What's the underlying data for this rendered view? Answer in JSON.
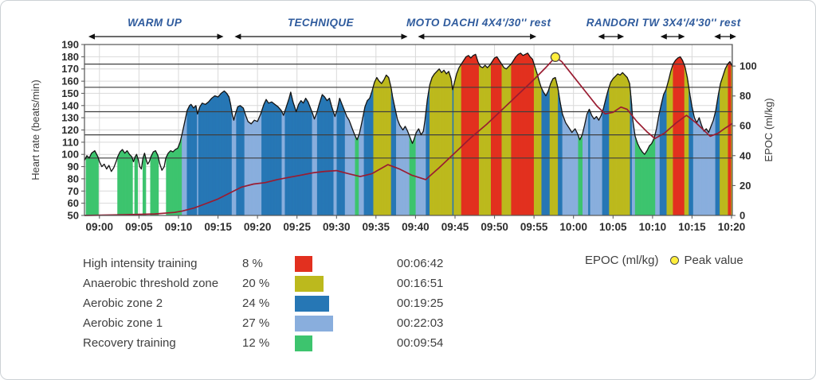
{
  "chart_data": {
    "type": "area",
    "title": "",
    "left_axis": {
      "label": "Heart rate (beats/min)",
      "min": 50,
      "max": 190,
      "tick_step": 10
    },
    "right_axis": {
      "label": "EPOC (ml/kg)",
      "ticks": [
        0,
        20,
        40,
        60,
        80,
        100
      ],
      "scale_max": 114.4
    },
    "time_axis": {
      "domain_min": -1.9,
      "domain_max": 80.1,
      "ticks": [
        {
          "min": 0,
          "label": "09:00"
        },
        {
          "min": 5,
          "label": "09:05"
        },
        {
          "min": 10,
          "label": "09:10"
        },
        {
          "min": 15,
          "label": "09:15"
        },
        {
          "min": 20,
          "label": "09:20"
        },
        {
          "min": 25,
          "label": "09:25"
        },
        {
          "min": 30,
          "label": "09:30"
        },
        {
          "min": 35,
          "label": "09:35"
        },
        {
          "min": 40,
          "label": "09:40"
        },
        {
          "min": 45,
          "label": "09:45"
        },
        {
          "min": 50,
          "label": "09:50"
        },
        {
          "min": 55,
          "label": "09:55"
        },
        {
          "min": 60,
          "label": "10:00"
        },
        {
          "min": 65,
          "label": "10:05"
        },
        {
          "min": 70,
          "label": "10:10"
        },
        {
          "min": 75,
          "label": "10:15"
        },
        {
          "min": 80,
          "label": "10:20"
        }
      ]
    },
    "zones": [
      {
        "name": "High intensity training",
        "hr_min": 174,
        "hr_max": 999,
        "color": "#e2301f"
      },
      {
        "name": "Anaerobic threshold zone",
        "hr_min": 155,
        "hr_max": 174,
        "color": "#bcb91d"
      },
      {
        "name": "Aerobic zone 2",
        "hr_min": 135,
        "hr_max": 155,
        "color": "#2677b5"
      },
      {
        "name": "Aerobic zone 1",
        "hr_min": 116,
        "hr_max": 135,
        "color": "#89aedd"
      },
      {
        "name": "Recovery training",
        "hr_min": 97,
        "hr_max": 116,
        "color": "#3dc46e"
      }
    ],
    "hr_series": [
      [
        -1.9,
        95
      ],
      [
        -1.6,
        99
      ],
      [
        -1.3,
        97
      ],
      [
        -1.0,
        101
      ],
      [
        -0.6,
        103
      ],
      [
        -0.2,
        98
      ],
      [
        0.0,
        94
      ],
      [
        0.3,
        90
      ],
      [
        0.6,
        92
      ],
      [
        0.9,
        88
      ],
      [
        1.2,
        91
      ],
      [
        1.5,
        86
      ],
      [
        1.8,
        89
      ],
      [
        2.1,
        94
      ],
      [
        2.3,
        98
      ],
      [
        2.6,
        102
      ],
      [
        2.9,
        104
      ],
      [
        3.2,
        101
      ],
      [
        3.5,
        103
      ],
      [
        3.8,
        100
      ],
      [
        4.1,
        98
      ],
      [
        4.3,
        94
      ],
      [
        4.5,
        98
      ],
      [
        4.7,
        100
      ],
      [
        4.9,
        96
      ],
      [
        5.1,
        90
      ],
      [
        5.3,
        88
      ],
      [
        5.5,
        97
      ],
      [
        5.7,
        101
      ],
      [
        5.9,
        96
      ],
      [
        6.1,
        92
      ],
      [
        6.3,
        94
      ],
      [
        6.5,
        98
      ],
      [
        6.8,
        102
      ],
      [
        7.1,
        103
      ],
      [
        7.4,
        99
      ],
      [
        7.6,
        93
      ],
      [
        7.9,
        87
      ],
      [
        8.2,
        90
      ],
      [
        8.4,
        97
      ],
      [
        8.7,
        101
      ],
      [
        9.0,
        103
      ],
      [
        9.3,
        102
      ],
      [
        9.6,
        104
      ],
      [
        9.9,
        105
      ],
      [
        10.2,
        110
      ],
      [
        10.5,
        118
      ],
      [
        10.8,
        127
      ],
      [
        11.1,
        136
      ],
      [
        11.4,
        140
      ],
      [
        11.6,
        141
      ],
      [
        11.9,
        138
      ],
      [
        12.2,
        140
      ],
      [
        12.4,
        133
      ],
      [
        12.7,
        139
      ],
      [
        13.0,
        142
      ],
      [
        13.4,
        141
      ],
      [
        13.8,
        143
      ],
      [
        14.2,
        146
      ],
      [
        14.6,
        148
      ],
      [
        15.0,
        147
      ],
      [
        15.4,
        150
      ],
      [
        15.8,
        152
      ],
      [
        16.1,
        150
      ],
      [
        16.4,
        147
      ],
      [
        16.6,
        141
      ],
      [
        16.8,
        133
      ],
      [
        17.0,
        128
      ],
      [
        17.2,
        133
      ],
      [
        17.5,
        139
      ],
      [
        17.8,
        140
      ],
      [
        18.2,
        138
      ],
      [
        18.5,
        132
      ],
      [
        18.8,
        127
      ],
      [
        19.2,
        125
      ],
      [
        19.6,
        128
      ],
      [
        20.0,
        127
      ],
      [
        20.4,
        133
      ],
      [
        20.8,
        141
      ],
      [
        21.1,
        145
      ],
      [
        21.4,
        142
      ],
      [
        21.8,
        143
      ],
      [
        22.2,
        141
      ],
      [
        22.6,
        139
      ],
      [
        23.0,
        136
      ],
      [
        23.3,
        132
      ],
      [
        23.6,
        138
      ],
      [
        24.0,
        146
      ],
      [
        24.2,
        151
      ],
      [
        24.5,
        143
      ],
      [
        24.9,
        135
      ],
      [
        25.2,
        141
      ],
      [
        25.5,
        144
      ],
      [
        25.8,
        142
      ],
      [
        26.1,
        146
      ],
      [
        26.4,
        143
      ],
      [
        26.7,
        138
      ],
      [
        27.0,
        133
      ],
      [
        27.2,
        129
      ],
      [
        27.5,
        134
      ],
      [
        27.8,
        141
      ],
      [
        28.2,
        149
      ],
      [
        28.5,
        147
      ],
      [
        28.8,
        144
      ],
      [
        29.1,
        146
      ],
      [
        29.4,
        139
      ],
      [
        29.8,
        131
      ],
      [
        30.1,
        137
      ],
      [
        30.4,
        146
      ],
      [
        30.7,
        141
      ],
      [
        31.0,
        136
      ],
      [
        31.3,
        131
      ],
      [
        31.6,
        128
      ],
      [
        32.0,
        121
      ],
      [
        32.3,
        116
      ],
      [
        32.6,
        112
      ],
      [
        32.9,
        117
      ],
      [
        33.2,
        126
      ],
      [
        33.6,
        139
      ],
      [
        33.9,
        144
      ],
      [
        34.2,
        146
      ],
      [
        34.5,
        152
      ],
      [
        34.8,
        159
      ],
      [
        35.1,
        163
      ],
      [
        35.4,
        160
      ],
      [
        35.7,
        158
      ],
      [
        36.0,
        161
      ],
      [
        36.3,
        165
      ],
      [
        36.6,
        163
      ],
      [
        36.9,
        155
      ],
      [
        37.1,
        147
      ],
      [
        37.4,
        138
      ],
      [
        37.7,
        129
      ],
      [
        38.0,
        124
      ],
      [
        38.4,
        120
      ],
      [
        38.7,
        123
      ],
      [
        39.0,
        119
      ],
      [
        39.3,
        114
      ],
      [
        39.6,
        109
      ],
      [
        39.8,
        112
      ],
      [
        40.1,
        118
      ],
      [
        40.4,
        121
      ],
      [
        40.7,
        116
      ],
      [
        41.0,
        119
      ],
      [
        41.2,
        128
      ],
      [
        41.5,
        145
      ],
      [
        41.8,
        157
      ],
      [
        42.1,
        163
      ],
      [
        42.4,
        166
      ],
      [
        42.7,
        168
      ],
      [
        43.0,
        170
      ],
      [
        43.3,
        167
      ],
      [
        43.6,
        169
      ],
      [
        43.9,
        166
      ],
      [
        44.2,
        168
      ],
      [
        44.5,
        162
      ],
      [
        44.7,
        153
      ],
      [
        44.9,
        158
      ],
      [
        45.2,
        166
      ],
      [
        45.5,
        171
      ],
      [
        45.8,
        174
      ],
      [
        46.1,
        177
      ],
      [
        46.4,
        180
      ],
      [
        46.7,
        181
      ],
      [
        47.0,
        179
      ],
      [
        47.3,
        181
      ],
      [
        47.6,
        182
      ],
      [
        47.9,
        176
      ],
      [
        48.2,
        172
      ],
      [
        48.5,
        171
      ],
      [
        48.8,
        173
      ],
      [
        49.1,
        171
      ],
      [
        49.4,
        173
      ],
      [
        49.7,
        176
      ],
      [
        50.0,
        179
      ],
      [
        50.3,
        180
      ],
      [
        50.6,
        177
      ],
      [
        50.9,
        174
      ],
      [
        51.2,
        171
      ],
      [
        51.5,
        170
      ],
      [
        51.8,
        172
      ],
      [
        52.1,
        174
      ],
      [
        52.4,
        177
      ],
      [
        52.7,
        180
      ],
      [
        53.0,
        182
      ],
      [
        53.3,
        183
      ],
      [
        53.6,
        181
      ],
      [
        53.9,
        182
      ],
      [
        54.2,
        183
      ],
      [
        54.5,
        180
      ],
      [
        54.8,
        178
      ],
      [
        55.1,
        172
      ],
      [
        55.4,
        166
      ],
      [
        55.7,
        159
      ],
      [
        55.9,
        155
      ],
      [
        56.2,
        151
      ],
      [
        56.5,
        148
      ],
      [
        56.8,
        152
      ],
      [
        57.1,
        158
      ],
      [
        57.4,
        162
      ],
      [
        57.7,
        163
      ],
      [
        58.0,
        155
      ],
      [
        58.3,
        143
      ],
      [
        58.6,
        133
      ],
      [
        59.0,
        126
      ],
      [
        59.4,
        122
      ],
      [
        59.8,
        118
      ],
      [
        60.2,
        121
      ],
      [
        60.5,
        117
      ],
      [
        60.8,
        112
      ],
      [
        61.1,
        116
      ],
      [
        61.4,
        124
      ],
      [
        61.7,
        133
      ],
      [
        62.0,
        137
      ],
      [
        62.3,
        132
      ],
      [
        62.6,
        129
      ],
      [
        62.9,
        131
      ],
      [
        63.2,
        128
      ],
      [
        63.5,
        132
      ],
      [
        63.8,
        138
      ],
      [
        64.1,
        146
      ],
      [
        64.4,
        153
      ],
      [
        64.7,
        159
      ],
      [
        65.0,
        162
      ],
      [
        65.3,
        164
      ],
      [
        65.6,
        166
      ],
      [
        65.9,
        165
      ],
      [
        66.2,
        167
      ],
      [
        66.5,
        165
      ],
      [
        66.8,
        163
      ],
      [
        67.1,
        158
      ],
      [
        67.3,
        145
      ],
      [
        67.5,
        128
      ],
      [
        67.8,
        115
      ],
      [
        68.1,
        109
      ],
      [
        68.4,
        105
      ],
      [
        68.7,
        102
      ],
      [
        69.0,
        100
      ],
      [
        69.3,
        103
      ],
      [
        69.6,
        107
      ],
      [
        69.9,
        109
      ],
      [
        70.2,
        113
      ],
      [
        70.5,
        121
      ],
      [
        70.8,
        132
      ],
      [
        71.1,
        141
      ],
      [
        71.4,
        149
      ],
      [
        71.7,
        153
      ],
      [
        72.0,
        160
      ],
      [
        72.3,
        168
      ],
      [
        72.6,
        174
      ],
      [
        72.9,
        177
      ],
      [
        73.2,
        179
      ],
      [
        73.5,
        180
      ],
      [
        73.8,
        177
      ],
      [
        74.1,
        172
      ],
      [
        74.4,
        163
      ],
      [
        74.7,
        150
      ],
      [
        75.0,
        139
      ],
      [
        75.3,
        130
      ],
      [
        75.6,
        126
      ],
      [
        75.9,
        130
      ],
      [
        76.2,
        124
      ],
      [
        76.5,
        119
      ],
      [
        76.8,
        121
      ],
      [
        77.1,
        118
      ],
      [
        77.4,
        123
      ],
      [
        77.7,
        128
      ],
      [
        78.0,
        136
      ],
      [
        78.3,
        148
      ],
      [
        78.6,
        158
      ],
      [
        78.9,
        164
      ],
      [
        79.2,
        170
      ],
      [
        79.5,
        174
      ],
      [
        79.8,
        176
      ],
      [
        80.1,
        172
      ]
    ],
    "epoc_series": [
      [
        -1.9,
        0
      ],
      [
        3,
        0.5
      ],
      [
        7,
        1
      ],
      [
        9.5,
        2
      ],
      [
        10.5,
        3
      ],
      [
        12,
        5
      ],
      [
        13.5,
        8
      ],
      [
        15,
        11
      ],
      [
        16.5,
        15
      ],
      [
        18,
        19
      ],
      [
        19.5,
        21
      ],
      [
        21,
        22
      ],
      [
        22.5,
        24
      ],
      [
        24,
        25.5
      ],
      [
        25.5,
        27
      ],
      [
        27,
        28.5
      ],
      [
        28.5,
        29.5
      ],
      [
        30,
        30
      ],
      [
        31.5,
        28
      ],
      [
        33,
        26
      ],
      [
        34.5,
        28
      ],
      [
        36.5,
        34
      ],
      [
        38,
        31
      ],
      [
        39.5,
        27
      ],
      [
        41.3,
        24
      ],
      [
        43,
        32
      ],
      [
        45,
        42
      ],
      [
        47,
        52
      ],
      [
        49,
        61
      ],
      [
        51,
        71
      ],
      [
        53,
        81
      ],
      [
        55,
        91
      ],
      [
        56.5,
        99
      ],
      [
        57.7,
        106
      ],
      [
        58.5,
        103
      ],
      [
        60,
        93
      ],
      [
        61.5,
        83
      ],
      [
        63,
        73
      ],
      [
        64,
        68
      ],
      [
        65,
        69
      ],
      [
        66,
        72.5
      ],
      [
        66.8,
        71
      ],
      [
        68,
        63
      ],
      [
        69.3,
        56
      ],
      [
        70.3,
        51.5
      ],
      [
        71.5,
        55
      ],
      [
        73,
        62
      ],
      [
        74.3,
        67
      ],
      [
        75.5,
        62
      ],
      [
        76.5,
        57
      ],
      [
        77.3,
        53
      ],
      [
        78.3,
        55
      ],
      [
        79.2,
        58.5
      ],
      [
        80.1,
        61.5
      ]
    ],
    "epoc_peak": {
      "t": 57.7,
      "value": 106,
      "marker_color": "#ffee3c"
    },
    "epoc_line_color": "#9a1c31",
    "phases": [
      {
        "label": "WARM UP",
        "label_center_min": 7.0,
        "arrows": [
          [
            -1.4,
            15.7
          ]
        ]
      },
      {
        "label": "TECHNIQUE",
        "label_center_min": 28.0,
        "arrows": [
          [
            17.1,
            39.0
          ]
        ]
      },
      {
        "label": "MOTO DACHI 4X4'/30'' rest",
        "label_center_min": 48.0,
        "arrows": [
          [
            40.3,
            55.3
          ]
        ]
      },
      {
        "label": "RANDORI TW 3X4'/4'30'' rest",
        "label_center_min": 71.4,
        "arrows": [
          [
            63.1,
            66.4
          ],
          [
            71.0,
            74.1
          ],
          [
            77.8,
            80.6
          ]
        ]
      }
    ],
    "summary": [
      {
        "label": "High intensity training",
        "percent": "8 %",
        "percent_value": 8,
        "duration": "00:06:42",
        "color": "#e2301f"
      },
      {
        "label": "Anaerobic threshold zone",
        "percent": "20 %",
        "percent_value": 20,
        "duration": "00:16:51",
        "color": "#bcb91d"
      },
      {
        "label": "Aerobic zone 2",
        "percent": "24 %",
        "percent_value": 24,
        "duration": "00:19:25",
        "color": "#2677b5"
      },
      {
        "label": "Aerobic zone 1",
        "percent": "27 %",
        "percent_value": 27,
        "duration": "00:22:03",
        "color": "#89aedd"
      },
      {
        "label": "Recovery training",
        "percent": "12 %",
        "percent_value": 12,
        "duration": "00:09:54",
        "color": "#3dc46e"
      }
    ],
    "epoc_legend": {
      "label": "EPOC (ml/kg)",
      "peak_label": "Peak value",
      "marker_color": "#ffee3c"
    }
  }
}
